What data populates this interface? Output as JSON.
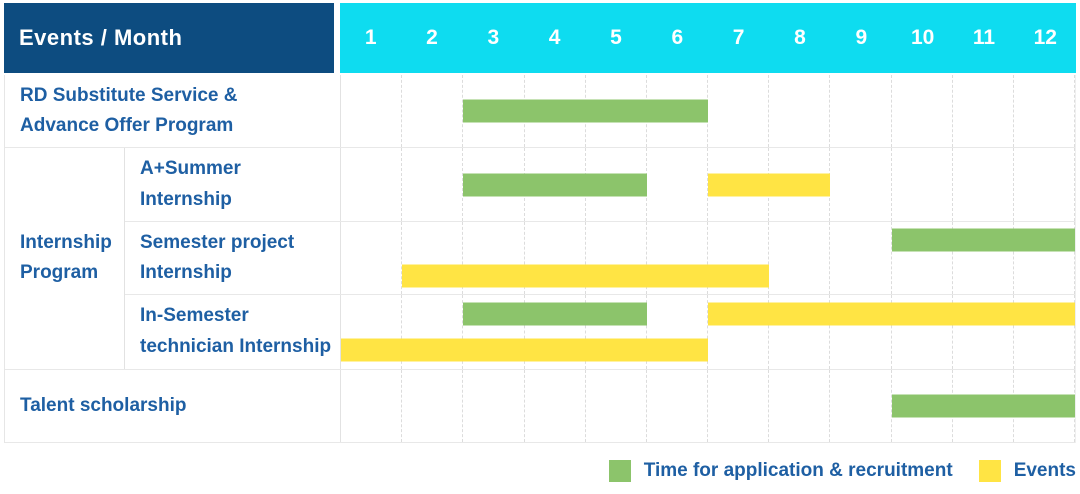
{
  "header": {
    "title": "Events / Month",
    "months": [
      "1",
      "2",
      "3",
      "4",
      "5",
      "6",
      "7",
      "8",
      "9",
      "10",
      "11",
      "12"
    ]
  },
  "sections": [
    {
      "type": "row",
      "row": {
        "name": "rd-substitute-service",
        "label_lines": [
          "RD Substitute Service &",
          "Advance Offer Program"
        ],
        "lines": [
          [
            {
              "color": "green",
              "start": 3,
              "end": 6
            }
          ]
        ]
      }
    },
    {
      "type": "group",
      "label_lines": [
        "Internship",
        "Program"
      ],
      "rows": [
        {
          "name": "a-plus-summer-internship",
          "label_lines": [
            "A+Summer",
            "Internship"
          ],
          "lines": [
            [
              {
                "color": "green",
                "start": 3,
                "end": 5
              },
              {
                "color": "yellow",
                "start": 7,
                "end": 8
              }
            ]
          ]
        },
        {
          "name": "semester-project-internship",
          "label_lines": [
            "Semester project",
            "Internship"
          ],
          "lines": [
            [
              {
                "color": "green",
                "start": 10,
                "end": 12
              }
            ],
            [
              {
                "color": "yellow",
                "start": 2,
                "end": 7
              }
            ]
          ]
        },
        {
          "name": "in-semester-technician-internship",
          "label_lines": [
            "In-Semester",
            "technician Internship"
          ],
          "lines": [
            [
              {
                "color": "green",
                "start": 3,
                "end": 5
              },
              {
                "color": "yellow",
                "start": 7,
                "end": 12
              }
            ],
            [
              {
                "color": "yellow",
                "start": 1,
                "end": 6
              }
            ]
          ]
        }
      ]
    },
    {
      "type": "row",
      "row": {
        "name": "talent-scholarship",
        "label_lines": [
          "Talent scholarship"
        ],
        "lines": [
          [
            {
              "color": "green",
              "start": 10,
              "end": 12
            }
          ]
        ]
      }
    }
  ],
  "legend": {
    "items": [
      {
        "color": "green",
        "label": "Time for application & recruitment"
      },
      {
        "color": "yellow",
        "label": "Events"
      }
    ]
  },
  "colors": {
    "header_bg": "#0d4c80",
    "months_bg": "#0edcf0",
    "text_blue": "#1e5fa3",
    "application_green": "#8cc46b",
    "events_yellow": "#ffe444",
    "grid": "#dcdcdc"
  },
  "chart_data": {
    "type": "table",
    "title": "Events / Month",
    "x_categories": [
      1,
      2,
      3,
      4,
      5,
      6,
      7,
      8,
      9,
      10,
      11,
      12
    ],
    "x_range": [
      1,
      12
    ],
    "grid": true,
    "legend_position": "bottom-right",
    "legend": [
      "Time for application & recruitment",
      "Events"
    ],
    "rows": [
      {
        "event": "RD Substitute Service & Advance Offer Program",
        "group": null,
        "application_recruitment_months": [
          [
            3,
            6
          ]
        ],
        "events_months": []
      },
      {
        "event": "A+Summer Internship",
        "group": "Internship Program",
        "application_recruitment_months": [
          [
            3,
            5
          ]
        ],
        "events_months": [
          [
            7,
            8
          ]
        ]
      },
      {
        "event": "Semester project Internship",
        "group": "Internship Program",
        "application_recruitment_months": [
          [
            10,
            12
          ]
        ],
        "events_months": [
          [
            2,
            7
          ]
        ]
      },
      {
        "event": "In-Semester technician Internship",
        "group": "Internship Program",
        "application_recruitment_months": [
          [
            3,
            5
          ]
        ],
        "events_months": [
          [
            7,
            12
          ],
          [
            1,
            6
          ]
        ]
      },
      {
        "event": "Talent scholarship",
        "group": null,
        "application_recruitment_months": [
          [
            10,
            12
          ]
        ],
        "events_months": []
      }
    ]
  }
}
